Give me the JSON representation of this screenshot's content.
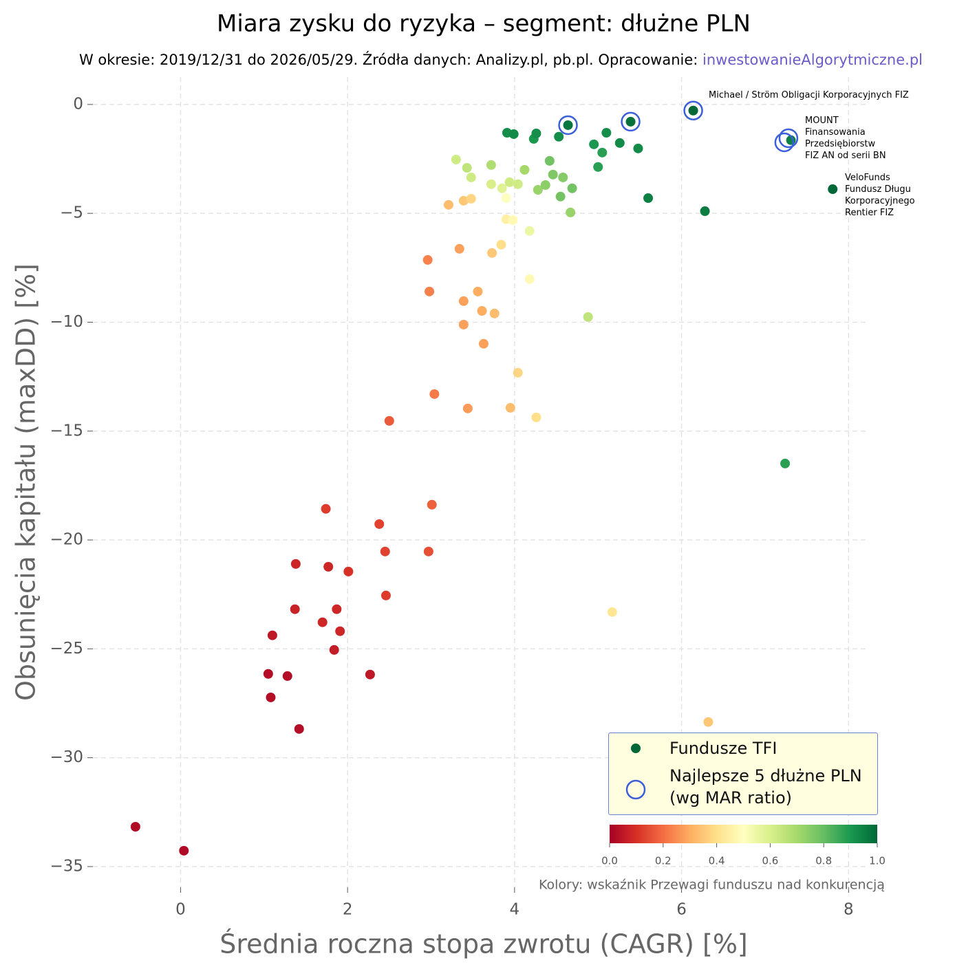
{
  "chart_data": {
    "type": "scatter",
    "title": "Miara zysku do ryzyka – segment: dłużne PLN",
    "subtitle": "W okresie: 2019/12/31 do 2026/05/29. Źródła danych: Analizy.pl, pb.pl. Opracowanie: ",
    "subtitle_link": "inwestowanieAlgorytmiczne.pl",
    "x_label": "Średnia roczna stopa zwrotu (CAGR) [%]",
    "y_label": "Obsunięcia kapitału (maxDD) [%]",
    "xlim": [
      -1.05,
      8.22
    ],
    "ylim": [
      -35.95,
      1.26
    ],
    "xticks": [
      0,
      2,
      4,
      6,
      8
    ],
    "yticks": [
      0,
      {
        "value": -5,
        "label": "−5"
      },
      {
        "value": -10,
        "label": "−10"
      },
      {
        "value": -15,
        "label": "−15"
      },
      {
        "value": -20,
        "label": "−20"
      },
      {
        "value": -25,
        "label": "−25"
      },
      {
        "value": -30,
        "label": "−30"
      },
      {
        "value": -35,
        "label": "−35"
      }
    ],
    "grid": true,
    "legend": "lower right",
    "series": [
      {
        "name": "Fundusze TFI",
        "color": "#006837",
        "marker": "dot",
        "x": [
          -0.54,
          0.04,
          1.05,
          1.08,
          1.28,
          1.42,
          1.1,
          1.37,
          1.38,
          1.7,
          1.84,
          1.87,
          1.91,
          1.77,
          2.01,
          2.27,
          1.74,
          2.38,
          2.45,
          2.46,
          2.97,
          3.01,
          2.5,
          3.04,
          3.44,
          3.95,
          4.26,
          4.04,
          3.63,
          3.39,
          3.39,
          3.76,
          3.61,
          3.56,
          2.98,
          2.96,
          3.34,
          3.73,
          3.84,
          3.21,
          3.39,
          3.48,
          3.9,
          3.98,
          3.9,
          3.85,
          3.72,
          3.94,
          4.04,
          4.18,
          4.18,
          4.67,
          4.88,
          5.17,
          6.32,
          3.3,
          3.43,
          3.48,
          3.72,
          4.12,
          4.28,
          4.37,
          4.46,
          4.42,
          4.58,
          4.55,
          4.69,
          3.91,
          3.99,
          4.23,
          4.26,
          4.53,
          4.64,
          4.95,
          5.05,
          5.0,
          5.1,
          5.26,
          5.48,
          5.39,
          5.6,
          6.14,
          6.28,
          7.24,
          7.31,
          7.81
        ],
        "values": [
          -33.17,
          -34.27,
          -26.15,
          -27.23,
          -26.25,
          -28.68,
          -24.38,
          -23.18,
          -21.1,
          -23.78,
          -25.05,
          -23.18,
          -24.19,
          -21.23,
          -21.45,
          -26.18,
          -18.57,
          -19.27,
          -20.53,
          -22.55,
          -20.53,
          -18.38,
          -14.53,
          -13.3,
          -13.96,
          -13.93,
          -14.37,
          -12.32,
          -10.99,
          -10.11,
          -9.03,
          -9.6,
          -9.48,
          -8.59,
          -8.59,
          -7.14,
          -6.63,
          -6.82,
          -6.44,
          -4.61,
          -4.42,
          -4.33,
          -5.27,
          -5.31,
          -4.3,
          -3.85,
          -3.66,
          -3.57,
          -3.66,
          -8.02,
          -5.81,
          -4.96,
          -9.76,
          -23.31,
          -28.36,
          -2.53,
          -2.91,
          -3.35,
          -2.78,
          -3.0,
          -3.92,
          -3.7,
          -3.22,
          -2.59,
          -3.35,
          -4.23,
          -3.85,
          -1.3,
          -1.36,
          -1.58,
          -1.33,
          -1.48,
          -0.95,
          -1.83,
          -2.21,
          -2.87,
          -1.3,
          -1.77,
          -2.02,
          -0.79,
          -4.3,
          -0.28,
          -4.9,
          -16.49,
          -1.64,
          -3.89
        ],
        "color_values": [
          0.02,
          0.02,
          0.03,
          0.03,
          0.03,
          0.03,
          0.05,
          0.07,
          0.08,
          0.08,
          0.06,
          0.08,
          0.08,
          0.08,
          0.1,
          0.05,
          0.12,
          0.13,
          0.13,
          0.12,
          0.15,
          0.18,
          0.17,
          0.22,
          0.27,
          0.33,
          0.4,
          0.38,
          0.28,
          0.28,
          0.28,
          0.33,
          0.3,
          0.3,
          0.23,
          0.23,
          0.28,
          0.35,
          0.4,
          0.33,
          0.35,
          0.38,
          0.45,
          0.48,
          0.5,
          0.58,
          0.6,
          0.62,
          0.62,
          0.48,
          0.55,
          0.72,
          0.65,
          0.42,
          0.35,
          0.62,
          0.65,
          0.62,
          0.68,
          0.7,
          0.72,
          0.74,
          0.76,
          0.78,
          0.75,
          0.78,
          0.78,
          0.92,
          0.93,
          0.9,
          0.92,
          0.92,
          0.97,
          0.9,
          0.88,
          0.88,
          0.92,
          0.93,
          0.93,
          0.98,
          0.95,
          1.0,
          0.96,
          0.88,
          0.95,
          1.0
        ]
      },
      {
        "name": "Najlepsze 5 dłużne PLN\n(wg MAR ratio)",
        "color": "#3b5fd9",
        "marker": "ring",
        "x": [
          4.64,
          5.39,
          6.14,
          7.23,
          7.28
        ],
        "values": [
          -0.95,
          -0.79,
          -0.28,
          -1.74,
          -1.55
        ]
      }
    ],
    "annotations": [
      {
        "text": "Michael / Ström Obligacji Korporacyjnych FIZ"
      },
      {
        "text": "MOUNT\nFinansowania\nPrzedsiębiorstw\nFIZ AN od serii BN"
      },
      {
        "text": "VeloFunds\nFundusz Długu\nKorporacyjnego\nRentier FIZ"
      }
    ],
    "colorbar": {
      "label": "Kolory: wskaźnik Przewagi funduszu nad konkurencją",
      "lim": [
        0,
        1
      ],
      "ticks": [
        {
          "value": 0,
          "label": "0.0"
        },
        {
          "value": 0.2,
          "label": "0.2"
        },
        {
          "value": 0.4,
          "label": "0.4"
        },
        {
          "value": 0.6,
          "label": "0.6"
        },
        {
          "value": 0.8,
          "label": "0.8"
        },
        {
          "value": 1,
          "label": "1.0"
        }
      ],
      "colormap": [
        "#a50026",
        "#d73027",
        "#f46d43",
        "#fdae61",
        "#fee08b",
        "#ffffbf",
        "#d9ef8b",
        "#a6d96a",
        "#66bd63",
        "#1a9850",
        "#006837"
      ]
    }
  }
}
